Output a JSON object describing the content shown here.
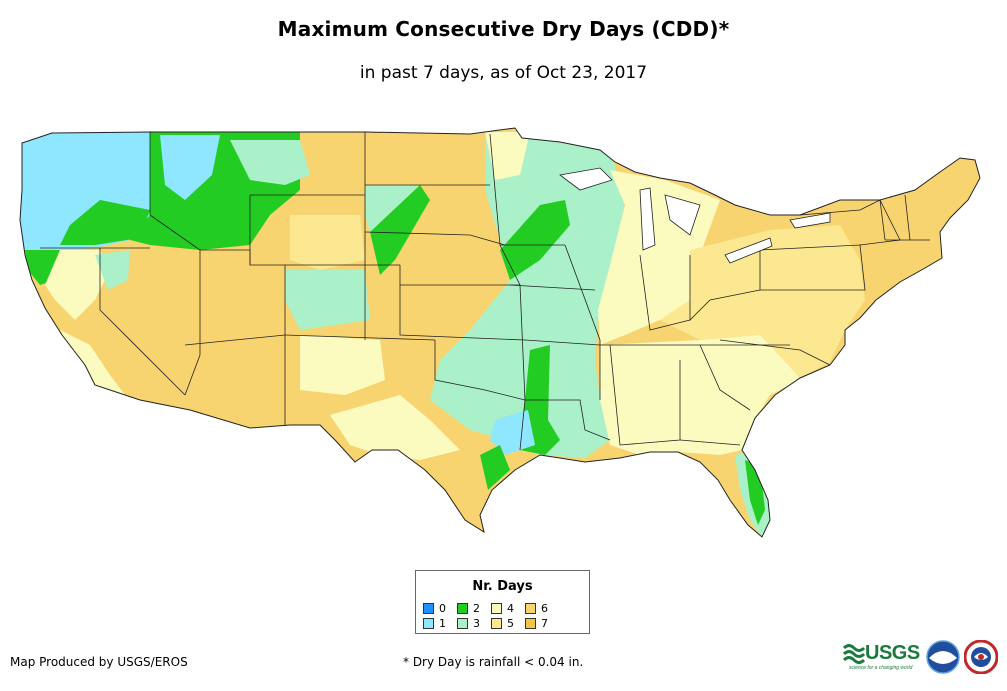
{
  "header": {
    "title": "Maximum Consecutive Dry Days (CDD)*",
    "subtitle": "in past 7 days, as of Oct 23, 2017"
  },
  "legend": {
    "title": "Nr. Days",
    "items": [
      {
        "label": "0",
        "color": "#1e90ff"
      },
      {
        "label": "1",
        "color": "#8ee6ff"
      },
      {
        "label": "2",
        "color": "#22cc22"
      },
      {
        "label": "3",
        "color": "#aaf0c8"
      },
      {
        "label": "4",
        "color": "#fbfbc0"
      },
      {
        "label": "5",
        "color": "#fbe890"
      },
      {
        "label": "6",
        "color": "#f8d470"
      },
      {
        "label": "7",
        "color": "#f5c445"
      }
    ]
  },
  "footer": {
    "credit": "Map Produced by USGS/EROS",
    "footnote": "* Dry Day is rainfall < 0.04 in.",
    "usgs_logo": "USGS",
    "usgs_tagline": "science for a changing world"
  },
  "logos": [
    "usgs-logo",
    "noaa-logo",
    "nws-logo"
  ]
}
